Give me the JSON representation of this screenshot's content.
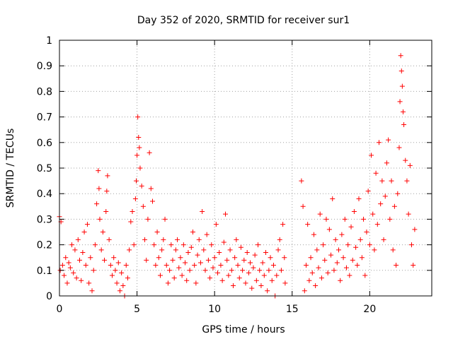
{
  "chart_data": {
    "type": "scatter",
    "title": "Day 352 of 2020, SRMTID for receiver sur1",
    "xlabel": "GPS time / hours",
    "ylabel": "SRMTID / TECUs",
    "xlim": [
      0,
      24
    ],
    "ylim": [
      0,
      1
    ],
    "x_ticks": [
      0,
      5,
      10,
      15,
      20
    ],
    "y_ticks": [
      0,
      0.1,
      0.2,
      0.3,
      0.4,
      0.5,
      0.6,
      0.7,
      0.8,
      0.9,
      1
    ],
    "y_tick_labels": [
      "0",
      "0.1",
      "0.2",
      "0.3",
      "0.4",
      "0.5",
      "0.6",
      "0.7",
      "0.8",
      "0.9",
      "1"
    ],
    "grid": true,
    "marker": "+",
    "series": [
      {
        "name": "SRMTID sur1",
        "color": "#ff0000",
        "points": [
          [
            0.0,
            0.31
          ],
          [
            0.05,
            0.1
          ],
          [
            0.1,
            0.29
          ],
          [
            0.2,
            0.12
          ],
          [
            0.3,
            0.08
          ],
          [
            0.4,
            0.15
          ],
          [
            0.5,
            0.05
          ],
          [
            0.6,
            0.13
          ],
          [
            0.7,
            0.11
          ],
          [
            0.8,
            0.2
          ],
          [
            0.9,
            0.09
          ],
          [
            1.0,
            0.18
          ],
          [
            1.1,
            0.07
          ],
          [
            1.2,
            0.22
          ],
          [
            1.3,
            0.14
          ],
          [
            1.4,
            0.06
          ],
          [
            1.5,
            0.17
          ],
          [
            1.6,
            0.25
          ],
          [
            1.7,
            0.12
          ],
          [
            1.8,
            0.28
          ],
          [
            1.9,
            0.05
          ],
          [
            2.0,
            0.15
          ],
          [
            2.1,
            0.02
          ],
          [
            2.2,
            0.1
          ],
          [
            2.3,
            0.2
          ],
          [
            2.4,
            0.36
          ],
          [
            2.5,
            0.49
          ],
          [
            2.55,
            0.42
          ],
          [
            2.6,
            0.3
          ],
          [
            2.7,
            0.18
          ],
          [
            2.8,
            0.25
          ],
          [
            2.9,
            0.14
          ],
          [
            3.0,
            0.33
          ],
          [
            3.05,
            0.41
          ],
          [
            3.1,
            0.47
          ],
          [
            3.2,
            0.22
          ],
          [
            3.3,
            0.12
          ],
          [
            3.4,
            0.08
          ],
          [
            3.5,
            0.15
          ],
          [
            3.6,
            0.1
          ],
          [
            3.7,
            0.05
          ],
          [
            3.8,
            0.13
          ],
          [
            3.9,
            0.02
          ],
          [
            4.0,
            0.09
          ],
          [
            4.1,
            0.04
          ],
          [
            4.2,
            0.0
          ],
          [
            4.3,
            0.12
          ],
          [
            4.4,
            0.07
          ],
          [
            4.5,
            0.18
          ],
          [
            4.6,
            0.29
          ],
          [
            4.7,
            0.33
          ],
          [
            4.8,
            0.2
          ],
          [
            4.9,
            0.38
          ],
          [
            4.95,
            0.45
          ],
          [
            5.0,
            0.55
          ],
          [
            5.05,
            0.7
          ],
          [
            5.1,
            0.62
          ],
          [
            5.15,
            0.58
          ],
          [
            5.2,
            0.5
          ],
          [
            5.3,
            0.43
          ],
          [
            5.4,
            0.35
          ],
          [
            5.5,
            0.22
          ],
          [
            5.6,
            0.14
          ],
          [
            5.7,
            0.3
          ],
          [
            5.8,
            0.56
          ],
          [
            5.9,
            0.42
          ],
          [
            6.0,
            0.37
          ],
          [
            6.1,
            0.2
          ],
          [
            6.2,
            0.12
          ],
          [
            6.3,
            0.25
          ],
          [
            6.4,
            0.15
          ],
          [
            6.5,
            0.08
          ],
          [
            6.6,
            0.18
          ],
          [
            6.7,
            0.22
          ],
          [
            6.8,
            0.3
          ],
          [
            6.9,
            0.12
          ],
          [
            7.0,
            0.05
          ],
          [
            7.1,
            0.1
          ],
          [
            7.2,
            0.2
          ],
          [
            7.3,
            0.14
          ],
          [
            7.4,
            0.07
          ],
          [
            7.5,
            0.18
          ],
          [
            7.6,
            0.22
          ],
          [
            7.7,
            0.11
          ],
          [
            7.8,
            0.15
          ],
          [
            7.9,
            0.08
          ],
          [
            8.0,
            0.2
          ],
          [
            8.1,
            0.13
          ],
          [
            8.2,
            0.06
          ],
          [
            8.3,
            0.17
          ],
          [
            8.4,
            0.1
          ],
          [
            8.5,
            0.19
          ],
          [
            8.6,
            0.25
          ],
          [
            8.7,
            0.12
          ],
          [
            8.8,
            0.05
          ],
          [
            8.9,
            0.16
          ],
          [
            9.0,
            0.22
          ],
          [
            9.1,
            0.13
          ],
          [
            9.2,
            0.33
          ],
          [
            9.3,
            0.18
          ],
          [
            9.4,
            0.1
          ],
          [
            9.5,
            0.24
          ],
          [
            9.6,
            0.14
          ],
          [
            9.7,
            0.07
          ],
          [
            9.8,
            0.2
          ],
          [
            9.9,
            0.11
          ],
          [
            10.0,
            0.15
          ],
          [
            10.1,
            0.28
          ],
          [
            10.2,
            0.09
          ],
          [
            10.3,
            0.17
          ],
          [
            10.4,
            0.12
          ],
          [
            10.5,
            0.06
          ],
          [
            10.6,
            0.21
          ],
          [
            10.7,
            0.32
          ],
          [
            10.8,
            0.14
          ],
          [
            10.9,
            0.08
          ],
          [
            11.0,
            0.18
          ],
          [
            11.1,
            0.1
          ],
          [
            11.2,
            0.04
          ],
          [
            11.3,
            0.15
          ],
          [
            11.4,
            0.22
          ],
          [
            11.5,
            0.12
          ],
          [
            11.6,
            0.07
          ],
          [
            11.7,
            0.19
          ],
          [
            11.8,
            0.1
          ],
          [
            11.9,
            0.14
          ],
          [
            12.0,
            0.05
          ],
          [
            12.1,
            0.17
          ],
          [
            12.2,
            0.09
          ],
          [
            12.3,
            0.13
          ],
          [
            12.4,
            0.03
          ],
          [
            12.5,
            0.11
          ],
          [
            12.6,
            0.16
          ],
          [
            12.7,
            0.06
          ],
          [
            12.8,
            0.2
          ],
          [
            12.9,
            0.1
          ],
          [
            13.0,
            0.04
          ],
          [
            13.1,
            0.13
          ],
          [
            13.2,
            0.08
          ],
          [
            13.3,
            0.17
          ],
          [
            13.4,
            0.02
          ],
          [
            13.5,
            0.1
          ],
          [
            13.6,
            0.15
          ],
          [
            13.7,
            0.06
          ],
          [
            13.8,
            0.12
          ],
          [
            13.9,
            0.0
          ],
          [
            14.0,
            0.08
          ],
          [
            14.1,
            0.18
          ],
          [
            14.2,
            0.22
          ],
          [
            14.3,
            0.1
          ],
          [
            14.4,
            0.28
          ],
          [
            14.5,
            0.15
          ],
          [
            14.55,
            0.05
          ],
          [
            15.6,
            0.45
          ],
          [
            15.7,
            0.35
          ],
          [
            15.8,
            0.02
          ],
          [
            15.9,
            0.12
          ],
          [
            16.0,
            0.28
          ],
          [
            16.1,
            0.06
          ],
          [
            16.2,
            0.15
          ],
          [
            16.3,
            0.09
          ],
          [
            16.4,
            0.24
          ],
          [
            16.5,
            0.04
          ],
          [
            16.6,
            0.18
          ],
          [
            16.7,
            0.11
          ],
          [
            16.8,
            0.32
          ],
          [
            16.9,
            0.07
          ],
          [
            17.0,
            0.2
          ],
          [
            17.1,
            0.14
          ],
          [
            17.2,
            0.3
          ],
          [
            17.3,
            0.09
          ],
          [
            17.4,
            0.26
          ],
          [
            17.5,
            0.16
          ],
          [
            17.6,
            0.38
          ],
          [
            17.7,
            0.1
          ],
          [
            17.8,
            0.22
          ],
          [
            17.9,
            0.13
          ],
          [
            18.0,
            0.18
          ],
          [
            18.1,
            0.06
          ],
          [
            18.2,
            0.24
          ],
          [
            18.3,
            0.15
          ],
          [
            18.4,
            0.3
          ],
          [
            18.5,
            0.11
          ],
          [
            18.6,
            0.2
          ],
          [
            18.7,
            0.08
          ],
          [
            18.8,
            0.27
          ],
          [
            18.9,
            0.14
          ],
          [
            19.0,
            0.33
          ],
          [
            19.1,
            0.19
          ],
          [
            19.2,
            0.12
          ],
          [
            19.3,
            0.38
          ],
          [
            19.4,
            0.22
          ],
          [
            19.5,
            0.15
          ],
          [
            19.6,
            0.3
          ],
          [
            19.7,
            0.08
          ],
          [
            19.8,
            0.25
          ],
          [
            19.9,
            0.41
          ],
          [
            20.0,
            0.2
          ],
          [
            20.1,
            0.55
          ],
          [
            20.2,
            0.32
          ],
          [
            20.3,
            0.18
          ],
          [
            20.4,
            0.48
          ],
          [
            20.5,
            0.28
          ],
          [
            20.6,
            0.6
          ],
          [
            20.7,
            0.36
          ],
          [
            20.8,
            0.45
          ],
          [
            20.9,
            0.22
          ],
          [
            21.0,
            0.39
          ],
          [
            21.1,
            0.52
          ],
          [
            21.2,
            0.61
          ],
          [
            21.3,
            0.3
          ],
          [
            21.4,
            0.45
          ],
          [
            21.5,
            0.18
          ],
          [
            21.6,
            0.35
          ],
          [
            21.7,
            0.12
          ],
          [
            21.8,
            0.4
          ],
          [
            21.9,
            0.58
          ],
          [
            21.95,
            0.76
          ],
          [
            22.0,
            0.94
          ],
          [
            22.05,
            0.88
          ],
          [
            22.1,
            0.82
          ],
          [
            22.15,
            0.72
          ],
          [
            22.2,
            0.67
          ],
          [
            22.3,
            0.53
          ],
          [
            22.4,
            0.45
          ],
          [
            22.5,
            0.32
          ],
          [
            22.6,
            0.51
          ],
          [
            22.7,
            0.2
          ],
          [
            22.8,
            0.12
          ],
          [
            22.9,
            0.26
          ]
        ]
      }
    ]
  }
}
